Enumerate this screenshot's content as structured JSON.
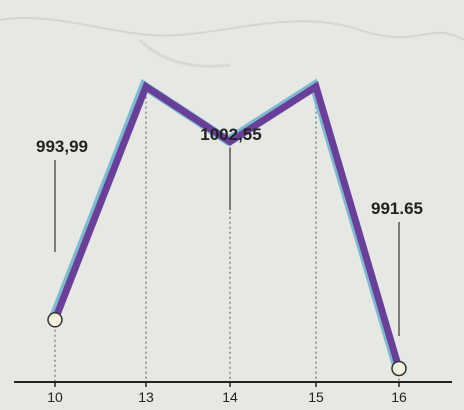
{
  "chart_data": {
    "type": "line",
    "x": [
      "10",
      "13",
      "14",
      "15",
      "16"
    ],
    "series": [
      {
        "values": [
          993.99,
          1005.2,
          1002.55,
          1005.2,
          991.65
        ]
      }
    ],
    "data_labels": [
      {
        "index": 0,
        "text": "993,99"
      },
      {
        "index": 2,
        "text": "1002,55"
      },
      {
        "index": 4,
        "text": "991.65"
      }
    ],
    "ylim": [
      991.0,
      1006.0
    ],
    "grid": "vertical-dotted-drop-lines",
    "colors": {
      "line": "#6a3f9a",
      "line_glow": "#4fa7c9",
      "point_fill": "#f5f3e0",
      "axis": "#222222"
    }
  }
}
